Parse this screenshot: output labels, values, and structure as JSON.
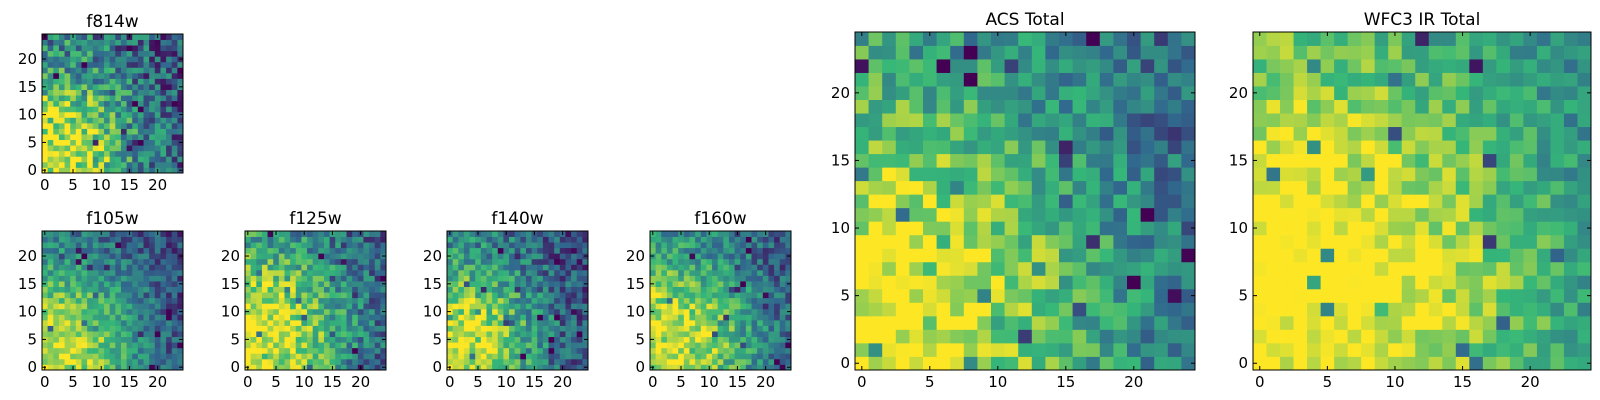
{
  "figure_title": "",
  "colormap": [
    "#440154",
    "#31688e",
    "#35b779",
    "#fde725"
  ],
  "chart_data": [
    {
      "type": "heatmap",
      "title": "f814w",
      "grid": [
        25,
        25
      ],
      "xlim": [
        0,
        24
      ],
      "ylim": [
        0,
        24
      ],
      "xticks": [
        "0",
        "5",
        "10",
        "15",
        "20"
      ],
      "yticks": [
        "0",
        "5",
        "10",
        "15",
        "20"
      ],
      "seed": 11,
      "hotspot": [
        4,
        4
      ],
      "falloff": 0.045,
      "noise": 0.28,
      "base": 0.45
    },
    {
      "type": "heatmap",
      "title": "f105w",
      "grid": [
        25,
        25
      ],
      "xlim": [
        0,
        24
      ],
      "ylim": [
        0,
        24
      ],
      "xticks": [
        "0",
        "5",
        "10",
        "15",
        "20"
      ],
      "yticks": [
        "0",
        "5",
        "10",
        "15",
        "20"
      ],
      "seed": 23,
      "hotspot": [
        4,
        4
      ],
      "falloff": 0.035,
      "noise": 0.18,
      "base": 0.4
    },
    {
      "type": "heatmap",
      "title": "f125w",
      "grid": [
        25,
        25
      ],
      "xlim": [
        0,
        24
      ],
      "ylim": [
        0,
        24
      ],
      "xticks": [
        "0",
        "5",
        "10",
        "15",
        "20"
      ],
      "yticks": [
        "0",
        "5",
        "10",
        "15",
        "20"
      ],
      "seed": 37,
      "hotspot": [
        4,
        6
      ],
      "falloff": 0.03,
      "noise": 0.22,
      "base": 0.45
    },
    {
      "type": "heatmap",
      "title": "f140w",
      "grid": [
        25,
        25
      ],
      "xlim": [
        0,
        24
      ],
      "ylim": [
        0,
        24
      ],
      "xticks": [
        "0",
        "5",
        "10",
        "15",
        "20"
      ],
      "yticks": [
        "0",
        "5",
        "10",
        "15",
        "20"
      ],
      "seed": 41,
      "hotspot": [
        3,
        5
      ],
      "falloff": 0.035,
      "noise": 0.22,
      "base": 0.4
    },
    {
      "type": "heatmap",
      "title": "f160w",
      "grid": [
        25,
        25
      ],
      "xlim": [
        0,
        24
      ],
      "ylim": [
        0,
        24
      ],
      "xticks": [
        "0",
        "5",
        "10",
        "15",
        "20"
      ],
      "yticks": [
        "0",
        "5",
        "10",
        "15",
        "20"
      ],
      "seed": 53,
      "hotspot": [
        4,
        5
      ],
      "falloff": 0.032,
      "noise": 0.2,
      "base": 0.45
    },
    {
      "type": "heatmap",
      "title": "ACS Total",
      "grid": [
        25,
        25
      ],
      "xlim": [
        0,
        24
      ],
      "ylim": [
        0,
        24
      ],
      "xticks": [
        "0",
        "5",
        "10",
        "15",
        "20"
      ],
      "yticks": [
        "0",
        "5",
        "10",
        "15",
        "20"
      ],
      "seed": 67,
      "hotspot": [
        4,
        4
      ],
      "falloff": 0.03,
      "noise": 0.2,
      "base": 0.5
    },
    {
      "type": "heatmap",
      "title": "WFC3 IR Total",
      "grid": [
        25,
        25
      ],
      "xlim": [
        0,
        24
      ],
      "ylim": [
        0,
        24
      ],
      "xticks": [
        "0",
        "5",
        "10",
        "15",
        "20"
      ],
      "yticks": [
        "0",
        "5",
        "10",
        "15",
        "20"
      ],
      "seed": 79,
      "hotspot": [
        6,
        6
      ],
      "falloff": 0.02,
      "noise": 0.16,
      "base": 0.55
    }
  ]
}
